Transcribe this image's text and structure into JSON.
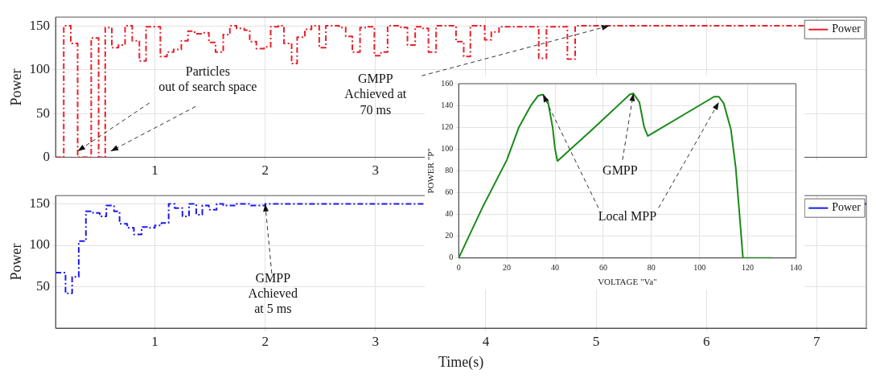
{
  "chart_data": [
    {
      "type": "step",
      "ylabel": "Power",
      "xlim": [
        0.1,
        7.45
      ],
      "xticks": [
        1,
        2,
        3,
        {
          "value": 4,
          "label": null
        },
        {
          "value": 5,
          "label": null
        },
        {
          "value": 6,
          "label": null
        },
        {
          "value": 7,
          "label": null
        }
      ],
      "ylim": [
        0,
        160
      ],
      "yticks": [
        0,
        50,
        100,
        150
      ],
      "grid": true,
      "legend": "top right",
      "line_style": "dashed",
      "series": [
        {
          "name": "Power",
          "color": "#e8202a",
          "x": [
            0.1,
            0.174,
            0.238,
            0.3,
            0.423,
            0.49,
            0.55,
            0.61,
            0.67,
            0.73,
            0.795,
            0.86,
            0.92,
            1.05,
            1.11,
            1.17,
            1.24,
            1.3,
            1.36,
            1.42,
            1.49,
            1.55,
            1.62,
            1.68,
            1.74,
            1.81,
            1.86,
            1.92,
            1.99,
            2.05,
            2.12,
            2.17,
            2.24,
            2.29,
            2.36,
            2.42,
            2.49,
            2.55,
            2.67,
            2.73,
            2.79,
            2.86,
            2.92,
            2.99,
            3.05,
            3.11,
            3.23,
            3.29,
            3.36,
            3.42,
            3.48,
            3.55,
            3.73,
            3.8,
            3.86,
            3.99,
            4.05,
            4.12,
            4.48,
            4.55,
            4.74,
            4.81,
            7.45
          ],
          "values": [
            0,
            150,
            130,
            0,
            136,
            0,
            148,
            125,
            128,
            150,
            133,
            110,
            149,
            115,
            120,
            123,
            133,
            144,
            141,
            142,
            131,
            120,
            140,
            150,
            147,
            145,
            132,
            124,
            126,
            149,
            150,
            130,
            107,
            137,
            146,
            150,
            125,
            150,
            148,
            138,
            120,
            148,
            149,
            116,
            120,
            150,
            148,
            128,
            149,
            147,
            120,
            150,
            132,
            115,
            150,
            134,
            143,
            149,
            113,
            149,
            112,
            150,
            150
          ]
        }
      ],
      "annotations": [
        {
          "text": "Particles\nout of search space",
          "x": 0.3,
          "y": 7
        },
        {
          "text": "GMPP\nAchieved at\n70 ms",
          "x": 5.12,
          "y": 150
        }
      ]
    },
    {
      "type": "step",
      "xlabel": "Time(s)",
      "ylabel": "Power",
      "xlim": [
        0.1,
        7.45
      ],
      "xticks": [
        1,
        2,
        3,
        4,
        5,
        6,
        7
      ],
      "ylim": [
        0,
        160
      ],
      "yticks": [
        50,
        100,
        150
      ],
      "grid": true,
      "legend": "top right",
      "line_style": "dashed",
      "series": [
        {
          "name": "Power",
          "color": "#1a1aee",
          "x": [
            0.1,
            0.19,
            0.25,
            0.31,
            0.375,
            0.44,
            0.5,
            0.56,
            0.63,
            0.68,
            0.75,
            0.81,
            0.88,
            0.94,
            1.0,
            1.06,
            1.125,
            1.18,
            1.25,
            1.31,
            1.375,
            1.43,
            1.49,
            1.56,
            1.62,
            1.74,
            1.87,
            2.0,
            7.45
          ],
          "values": [
            67,
            42,
            62,
            105,
            141,
            139,
            135,
            148,
            141,
            126,
            121,
            113,
            122,
            121,
            124,
            127,
            150,
            145,
            135,
            150,
            137,
            148,
            143,
            150,
            148,
            150,
            148,
            150,
            150
          ]
        }
      ],
      "annotations": [
        {
          "text": "GMPP\nAchieved\nat 5 ms",
          "x": 2.0,
          "y": 150
        }
      ]
    },
    {
      "type": "line",
      "xlabel": "VOLTAGE \"Va\"",
      "ylabel": "POWER \"P\"",
      "xlim": [
        0,
        140
      ],
      "xticks": [
        0,
        20,
        40,
        60,
        80,
        100,
        120,
        140
      ],
      "ylim": [
        0,
        160
      ],
      "yticks": [
        0,
        20,
        40,
        60,
        80,
        100,
        120,
        140,
        160
      ],
      "grid": true,
      "series": [
        {
          "color": "#1a8a1a",
          "x": [
            0,
            10,
            20,
            25,
            30,
            33,
            35,
            37,
            39,
            40,
            41,
            55,
            71,
            72.5,
            75,
            77,
            78.5,
            106,
            108,
            110,
            113,
            115,
            117,
            118,
            130
          ],
          "values": [
            0,
            47,
            90,
            120,
            140,
            149,
            150,
            144,
            120,
            100,
            89,
            117,
            150,
            151,
            143,
            120,
            112,
            148,
            148,
            142,
            118,
            83,
            28,
            0,
            0
          ]
        }
      ],
      "annotations": [
        {
          "text": "GMPP",
          "x": 72.5,
          "y": 151
        },
        {
          "text": "Local MPP",
          "x": 35,
          "y": 150
        }
      ]
    }
  ]
}
